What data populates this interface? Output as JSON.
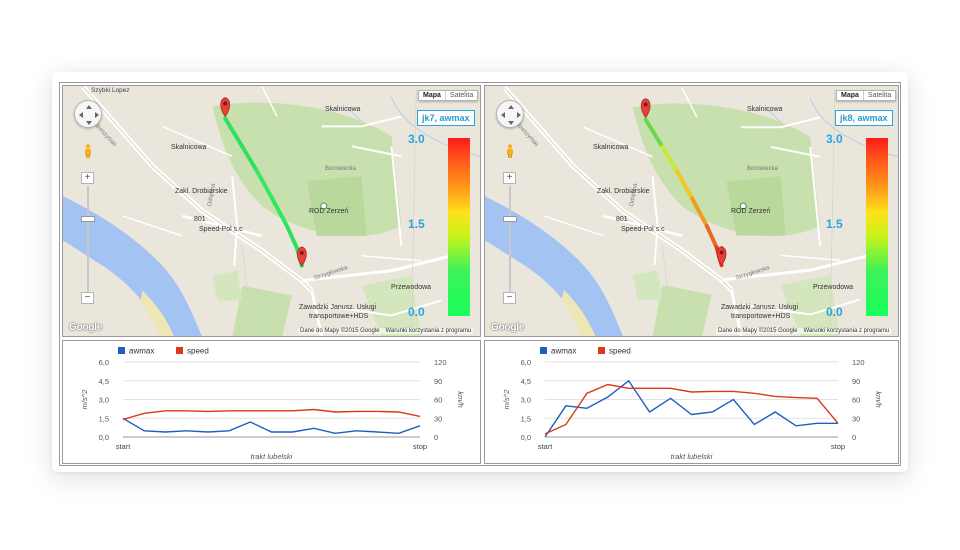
{
  "left": {
    "map": {
      "map_type_buttons": [
        "Mapa",
        "Satelita"
      ],
      "legend_title": "jk7, awmax",
      "legend_max": "3.0",
      "legend_mid": "1.5",
      "legend_min": "0.0",
      "labels": {
        "szybki_lopez": "Szybki Lopez",
        "wal_miedzeszynski": "Wał Miedzeszyński",
        "skalnicowa_1": "Skalnicowa",
        "skalnicowa_2": "Skalnicowa",
        "borowiecka": "Borowiecka",
        "zakl_drobiarskie": "Zakl. Drobiarskie",
        "road_801": "801",
        "speed_pol": "Speed-Pol s.c",
        "rod_zerzen": "ROD Zerzeń",
        "strzygłowska": "Strzygłowska",
        "przewodowa": "Przewodowa",
        "zawadzki": "Zawadzki Janusz. Usługi",
        "zawadzki_2": "transportowe+HDS",
        "odrebna": "Odrębna"
      },
      "attribution": "Dane do Mapy ©2015 Google",
      "terms": "Warunki korzystania z programu",
      "google": "Google"
    },
    "chart_data": {
      "type": "line",
      "legend": [
        "awmax",
        "speed"
      ],
      "categories": [
        "start",
        "",
        "",
        "",
        "",
        "",
        "",
        "",
        "",
        "",
        "",
        "",
        "",
        "",
        "stop"
      ],
      "xlabel": "trakt lubelski",
      "ylabel": "m/s^2",
      "y2label": "km/h",
      "ylim": [
        0,
        6
      ],
      "y2lim": [
        0,
        120
      ],
      "yticks": [
        "0,0",
        "1,5",
        "3,0",
        "4,5",
        "6,0"
      ],
      "y2ticks": [
        "0",
        "30",
        "60",
        "90",
        "120"
      ],
      "series": [
        {
          "name": "awmax",
          "axis": "left",
          "color": "#1f5fbf",
          "values": [
            1.5,
            0.5,
            0.4,
            0.5,
            0.4,
            0.5,
            1.2,
            0.4,
            0.4,
            0.7,
            0.3,
            0.5,
            0.4,
            0.3,
            0.9
          ]
        },
        {
          "name": "speed",
          "axis": "right",
          "color": "#d93a1a",
          "values": [
            28,
            38,
            42,
            42,
            41,
            42,
            42,
            42,
            42,
            44,
            40,
            41,
            41,
            40,
            33
          ]
        }
      ],
      "grid": true
    }
  },
  "right": {
    "map": {
      "map_type_buttons": [
        "Mapa",
        "Satelita"
      ],
      "legend_title": "jk8, awmax",
      "legend_max": "3.0",
      "legend_mid": "1.5",
      "legend_min": "0.0",
      "labels": {
        "szybki_lopez": "",
        "wal_miedzeszynski": "Wał Miedzeszyński",
        "skalnicowa_1": "Skalnicowa",
        "skalnicowa_2": "Skalnicowa",
        "borowiecka": "Borowiecka",
        "zakl_drobiarskie": "Zakl. Drobiarskie",
        "road_801": "801",
        "speed_pol": "Speed-Pol s.c",
        "rod_zerzen": "ROD Zerzeń",
        "strzygłowska": "Strzygłowska",
        "przewodowa": "Przewodowa",
        "zawadzki": "Zawadzki Janusz. Usługi",
        "zawadzki_2": "transportowe+HDS",
        "odrebna": "Odrębna"
      },
      "attribution": "Dane do Mapy ©2015 Google",
      "terms": "Warunki korzystania z programu",
      "google": "Google"
    },
    "chart_data": {
      "type": "line",
      "legend": [
        "awmax",
        "speed"
      ],
      "categories": [
        "start",
        "",
        "",
        "",
        "",
        "",
        "",
        "",
        "",
        "",
        "",
        "",
        "",
        "",
        "stop"
      ],
      "xlabel": "trakt lubelski",
      "ylabel": "m/s^2",
      "y2label": "km/h",
      "ylim": [
        0,
        6
      ],
      "y2lim": [
        0,
        120
      ],
      "yticks": [
        "0,0",
        "1,5",
        "3,0",
        "4,5",
        "6,0"
      ],
      "y2ticks": [
        "0",
        "30",
        "60",
        "90",
        "120"
      ],
      "series": [
        {
          "name": "awmax",
          "axis": "left",
          "color": "#1f5fbf",
          "values": [
            0.0,
            2.5,
            2.3,
            3.2,
            4.5,
            2.0,
            3.1,
            1.8,
            2.0,
            3.0,
            1.0,
            2.0,
            0.9,
            1.1,
            1.1
          ]
        },
        {
          "name": "speed",
          "axis": "right",
          "color": "#d93a1a",
          "values": [
            5,
            20,
            70,
            84,
            78,
            78,
            78,
            72,
            73,
            73,
            70,
            65,
            63,
            62,
            22
          ]
        }
      ],
      "grid": true
    }
  },
  "colors": {
    "map_bg": "#ebe6dc",
    "green_area": "#c8dfae",
    "water": "#a3c3f2",
    "legend_text": "#29a3e0"
  }
}
